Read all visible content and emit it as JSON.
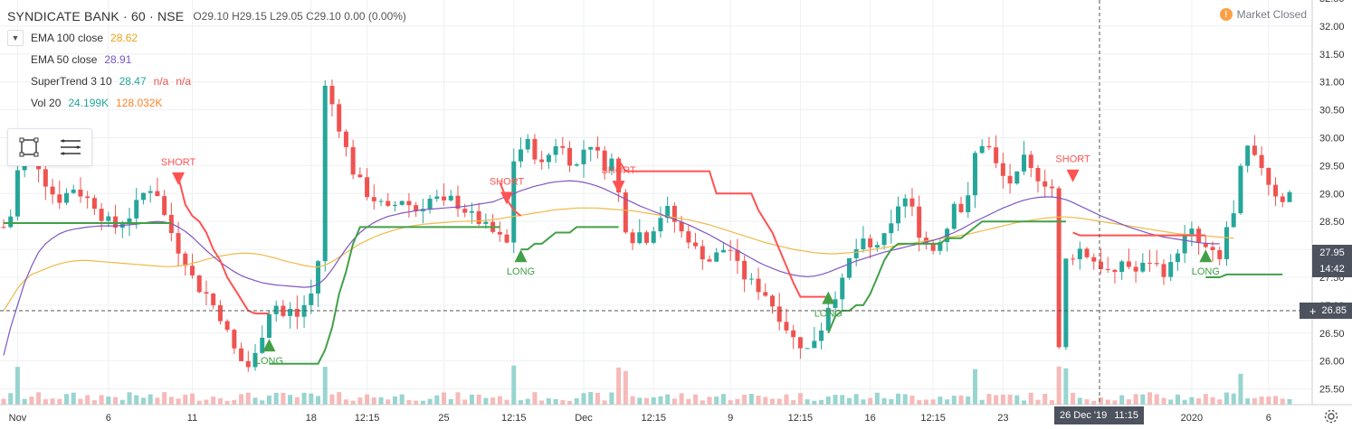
{
  "header": {
    "symbol": "SYNDICATE BANK · 60 · NSE",
    "ohlc": {
      "o": "O29.10",
      "h": "H29.15",
      "l": "L29.05",
      "c": "C29.10",
      "chg": "0.00 (0.00%)"
    },
    "status_icon": "!",
    "status": "Market Closed"
  },
  "indicators": [
    {
      "name": "EMA 100 close",
      "values": [
        "28.62"
      ],
      "colors": [
        "#e8a317"
      ]
    },
    {
      "name": "EMA 50 close",
      "values": [
        "28.91"
      ],
      "colors": [
        "#7a55c5"
      ]
    },
    {
      "name": "SuperTrend 3 10",
      "values": [
        "28.47",
        "n/a",
        "n/a"
      ],
      "colors": [
        "#26a69a",
        "#ef5350",
        "#ef5350"
      ]
    },
    {
      "name": "Vol 20",
      "values": [
        "24.199K",
        "128.032K"
      ],
      "colors": [
        "#26a69a",
        "#ff7f27"
      ]
    }
  ],
  "toolbar": {
    "icons": [
      "rectangle-select-icon",
      "menu-lines-icon"
    ]
  },
  "price_tags": {
    "last": "27.95",
    "countdown": "14:42",
    "crosshair": "26.85"
  },
  "crosshair_date": {
    "date": "26 Dec '19",
    "time": "11:15"
  },
  "colors": {
    "up": "#26a69a",
    "down": "#ef5350",
    "ema100": "#f0b948",
    "ema50": "#7e57c2",
    "st_up": "#43a047",
    "st_down": "#ff5252",
    "vol_up": "#80cbc4",
    "vol_down": "#f4a9a7"
  },
  "chart_data": {
    "type": "line",
    "title": "",
    "ylim": [
      25.25,
      32.5
    ],
    "y_ticks": [
      "32.50",
      "32.00",
      "31.50",
      "31.00",
      "30.50",
      "30.00",
      "29.50",
      "29.00",
      "28.50",
      "28.00",
      "27.50",
      "27.00",
      "26.50",
      "26.00",
      "25.50"
    ],
    "x_ticks": [
      {
        "label": "Nov",
        "i": 2
      },
      {
        "label": "6",
        "i": 15
      },
      {
        "label": "11",
        "i": 27
      },
      {
        "label": "18",
        "i": 44
      },
      {
        "label": "12:15",
        "i": 52
      },
      {
        "label": "25",
        "i": 63
      },
      {
        "label": "12:15",
        "i": 73
      },
      {
        "label": "Dec",
        "i": 83
      },
      {
        "label": "12:15",
        "i": 93
      },
      {
        "label": "9",
        "i": 104
      },
      {
        "label": "12:15",
        "i": 114
      },
      {
        "label": "16",
        "i": 124
      },
      {
        "label": "12:15",
        "i": 133
      },
      {
        "label": "23",
        "i": 143
      },
      {
        "label": "2020",
        "i": 170
      },
      {
        "label": "6",
        "i": 181
      }
    ],
    "ema100": [
      26.9,
      27.1,
      27.3,
      27.45,
      27.55,
      27.6,
      27.65,
      27.7,
      27.74,
      27.77,
      27.79,
      27.8,
      27.8,
      27.79,
      27.78,
      27.77,
      27.76,
      27.75,
      27.74,
      27.73,
      27.72,
      27.71,
      27.7,
      27.69,
      27.69,
      27.7,
      27.72,
      27.75,
      27.78,
      27.82,
      27.85,
      27.88,
      27.9,
      27.92,
      27.93,
      27.93,
      27.92,
      27.9,
      27.87,
      27.84,
      27.8,
      27.77,
      27.74,
      27.71,
      27.69,
      27.68,
      27.72,
      27.78,
      27.86,
      27.94,
      28.02,
      28.1,
      28.16,
      28.22,
      28.27,
      28.31,
      28.35,
      28.38,
      28.41,
      28.43,
      28.45,
      28.46,
      28.47,
      28.48,
      28.49,
      28.5,
      28.5,
      28.51,
      28.51,
      28.52,
      28.53,
      28.55,
      28.57,
      28.59,
      28.61,
      28.63,
      28.65,
      28.67,
      28.69,
      28.71,
      28.72,
      28.73,
      28.74,
      28.74,
      28.74,
      28.74,
      28.73,
      28.72,
      28.71,
      28.7,
      28.69,
      28.67,
      28.65,
      28.63,
      28.61,
      28.59,
      28.57,
      28.55,
      28.53,
      28.5,
      28.47,
      28.44,
      28.4,
      28.36,
      28.32,
      28.28,
      28.24,
      28.2,
      28.16,
      28.12,
      28.09,
      28.06,
      28.03,
      28.0,
      27.98,
      27.96,
      27.94,
      27.93,
      27.92,
      27.92,
      27.93,
      27.94,
      27.95,
      27.97,
      27.99,
      28.01,
      28.03,
      28.05,
      28.07,
      28.09,
      28.11,
      28.13,
      28.15,
      28.17,
      28.19,
      28.21,
      28.23,
      28.25,
      28.27,
      28.3,
      28.33,
      28.36,
      28.39,
      28.42,
      28.45,
      28.48,
      28.5,
      28.52,
      28.54,
      28.56,
      28.57,
      28.58,
      28.58,
      28.57,
      28.56,
      28.54,
      28.52,
      28.5,
      28.48,
      28.46,
      28.44,
      28.42,
      28.4,
      28.38,
      28.36,
      28.34,
      28.32,
      28.3,
      28.28,
      28.27,
      28.26,
      28.25,
      28.24,
      28.23,
      28.22,
      28.21,
      28.2
    ],
    "ema50": [
      26.1,
      26.6,
      27.0,
      27.4,
      27.7,
      27.95,
      28.1,
      28.2,
      28.28,
      28.33,
      28.36,
      28.38,
      28.4,
      28.41,
      28.42,
      28.42,
      28.42,
      28.43,
      28.44,
      28.45,
      28.47,
      28.49,
      28.5,
      28.49,
      28.46,
      28.4,
      28.32,
      28.22,
      28.1,
      27.98,
      27.87,
      27.77,
      27.68,
      27.6,
      27.53,
      27.48,
      27.44,
      27.4,
      27.38,
      27.36,
      27.35,
      27.34,
      27.33,
      27.32,
      27.33,
      27.37,
      27.48,
      27.64,
      27.83,
      28.01,
      28.17,
      28.3,
      28.4,
      28.48,
      28.54,
      28.59,
      28.62,
      28.65,
      28.67,
      28.69,
      28.71,
      28.72,
      28.73,
      28.74,
      28.75,
      28.76,
      28.77,
      28.79,
      28.81,
      28.83,
      28.85,
      28.9,
      28.95,
      29.0,
      29.05,
      29.09,
      29.13,
      29.16,
      29.19,
      29.21,
      29.22,
      29.23,
      29.22,
      29.2,
      29.17,
      29.13,
      29.08,
      29.02,
      28.96,
      28.9,
      28.84,
      28.78,
      28.73,
      28.68,
      28.63,
      28.58,
      28.54,
      28.49,
      28.44,
      28.38,
      28.32,
      28.26,
      28.19,
      28.12,
      28.05,
      27.98,
      27.91,
      27.84,
      27.77,
      27.71,
      27.66,
      27.61,
      27.57,
      27.54,
      27.52,
      27.51,
      27.52,
      27.55,
      27.59,
      27.64,
      27.69,
      27.74,
      27.79,
      27.83,
      27.87,
      27.91,
      27.95,
      27.98,
      28.01,
      28.04,
      28.07,
      28.1,
      28.13,
      28.16,
      28.2,
      28.25,
      28.3,
      28.36,
      28.43,
      28.5,
      28.56,
      28.62,
      28.68,
      28.74,
      28.79,
      28.84,
      28.88,
      28.91,
      28.93,
      28.94,
      28.94,
      28.92,
      28.89,
      28.84,
      28.78,
      28.72,
      28.66,
      28.6,
      28.55,
      28.5,
      28.45,
      28.4,
      28.36,
      28.32,
      28.28,
      28.25,
      28.22,
      28.2,
      28.18,
      28.16,
      28.14,
      28.12,
      28.11,
      28.1,
      28.1
    ],
    "supertrend": [
      {
        "from": 0,
        "to": 24,
        "dir": "up",
        "values": [
          28.47,
          28.47
        ]
      },
      {
        "from": 25,
        "to": 38,
        "dir": "down",
        "values": [
          29.3,
          28.8,
          28.6,
          28.5,
          28.3,
          28.0,
          27.8,
          27.5,
          27.3,
          27.1,
          26.9,
          26.85,
          26.85,
          26.85
        ]
      },
      {
        "from": 38,
        "to": 71,
        "dir": "up",
        "values": [
          25.95,
          25.95,
          25.95,
          25.95,
          25.95,
          25.95,
          25.95,
          25.95,
          26.2,
          26.6,
          27.2,
          27.6,
          28.1,
          28.4,
          28.4,
          28.4,
          28.4,
          28.4,
          28.4,
          28.4,
          28.4,
          28.4,
          28.4,
          28.4,
          28.4,
          28.4,
          28.4,
          28.4,
          28.4,
          28.4,
          28.4,
          28.4,
          28.4,
          28.4
        ]
      },
      {
        "from": 71,
        "to": 74,
        "dir": "down",
        "values": [
          29.2,
          28.9,
          28.7,
          28.6
        ]
      },
      {
        "from": 74,
        "to": 88,
        "dir": "up",
        "values": [
          28.0,
          28.0,
          28.1,
          28.1,
          28.2,
          28.3,
          28.3,
          28.3,
          28.4,
          28.4,
          28.4,
          28.4,
          28.4,
          28.4,
          28.4
        ]
      },
      {
        "from": 88,
        "to": 118,
        "dir": "down",
        "values": [
          29.6,
          29.4,
          29.4,
          29.4,
          29.4,
          29.4,
          29.4,
          29.4,
          29.4,
          29.4,
          29.4,
          29.4,
          29.4,
          29.4,
          29.0,
          29.0,
          29.0,
          29.0,
          29.0,
          29.0,
          28.7,
          28.5,
          28.3,
          28.0,
          27.7,
          27.4,
          27.15,
          27.15,
          27.15,
          27.15,
          27.15
        ]
      },
      {
        "from": 118,
        "to": 152,
        "dir": "up",
        "values": [
          26.5,
          26.8,
          26.9,
          26.9,
          27.0,
          27.0,
          27.2,
          27.5,
          27.8,
          28.0,
          28.1,
          28.1,
          28.1,
          28.1,
          28.1,
          28.1,
          28.1,
          28.2,
          28.2,
          28.2,
          28.3,
          28.4,
          28.5,
          28.5,
          28.5,
          28.5,
          28.5,
          28.5,
          28.5,
          28.5,
          28.5,
          28.5,
          28.5,
          28.5,
          28.5
        ]
      },
      {
        "from": 153,
        "to": 172,
        "dir": "down",
        "values": [
          28.3,
          28.25,
          28.25,
          28.25,
          28.25,
          28.25,
          28.25,
          28.25,
          28.25,
          28.25,
          28.25,
          28.25,
          28.25,
          28.25,
          28.25,
          28.25,
          28.25,
          28.25,
          28.25,
          28.25
        ]
      },
      {
        "from": 172,
        "to": 183,
        "dir": "up",
        "values": [
          27.5,
          27.5,
          27.5,
          27.55,
          27.55,
          27.55,
          27.55,
          27.55,
          27.55,
          27.55,
          27.55,
          27.55
        ]
      }
    ],
    "signals": [
      {
        "i": 25,
        "type": "SHORT",
        "price": 29.25
      },
      {
        "i": 38,
        "type": "LONG",
        "price": 26.3
      },
      {
        "i": 72,
        "type": "SHORT",
        "price": 28.9
      },
      {
        "i": 74,
        "type": "LONG",
        "price": 27.9
      },
      {
        "i": 88,
        "type": "SHORT",
        "price": 29.1
      },
      {
        "i": 118,
        "type": "LONG",
        "price": 27.15
      },
      {
        "i": 153,
        "type": "SHORT",
        "price": 29.3
      },
      {
        "i": 172,
        "type": "LONG",
        "price": 27.9
      }
    ]
  }
}
